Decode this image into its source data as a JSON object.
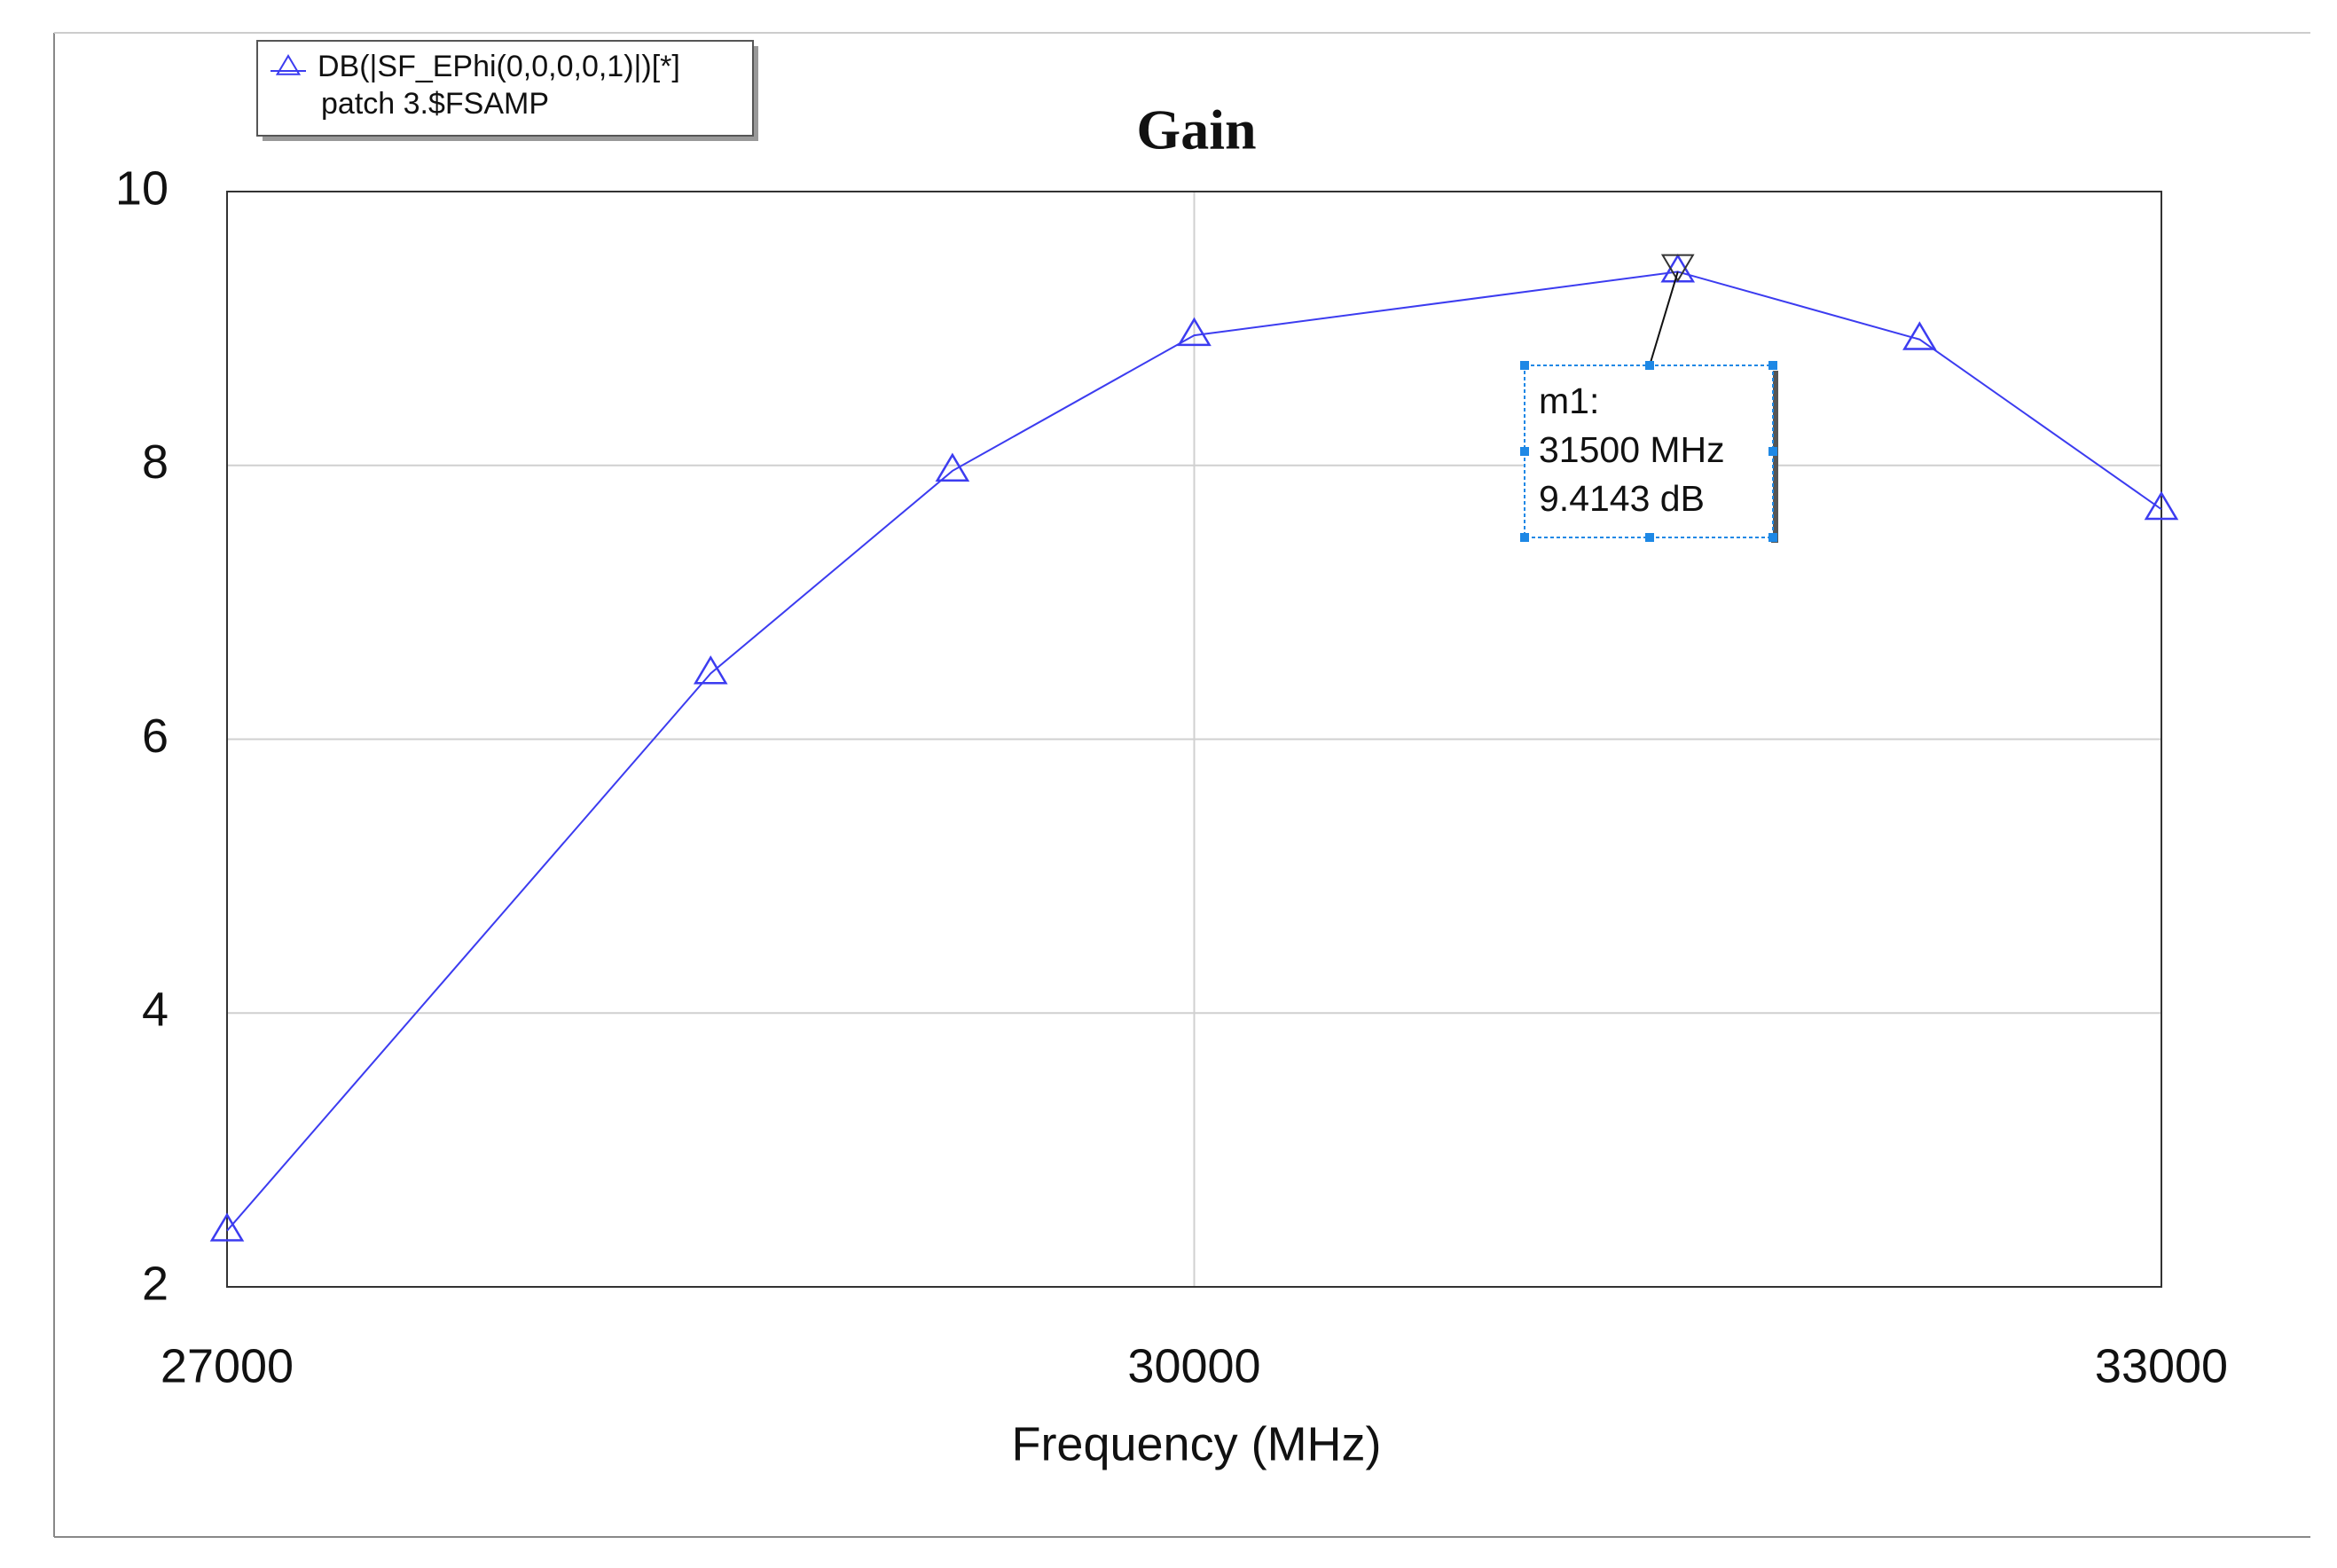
{
  "chart_data": {
    "type": "line",
    "title": "Gain",
    "x_label": "Frequency (MHz)",
    "x": [
      27000,
      28500,
      29250,
      30000,
      31500,
      32250,
      33000
    ],
    "series": [
      {
        "name": "DB(|SF_EPhi(0,0,0,0,1)|)[*]",
        "color": "#3c3cf0",
        "values": [
          2.41,
          6.48,
          7.96,
          8.95,
          9.4143,
          8.92,
          7.68
        ]
      }
    ],
    "setup": "patch 3.$FSAMP",
    "xlim": [
      27000,
      33000
    ],
    "xticks": [
      27000,
      30000,
      33000
    ],
    "ylim": [
      2,
      10
    ],
    "yticks": [
      2,
      4,
      6,
      8,
      10
    ],
    "grid": true,
    "legend": "top-left",
    "marker": {
      "name": "m1:",
      "lines": [
        "31500 MHz",
        "9.4143 dB"
      ],
      "x": 31500,
      "y": 9.4143
    }
  }
}
